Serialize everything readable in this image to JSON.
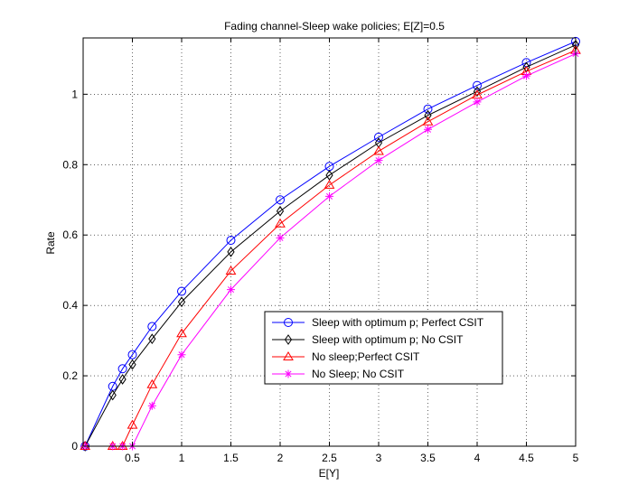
{
  "chart_data": {
    "type": "line",
    "title": "Fading channel-Sleep wake policies; E[Z]=0.5",
    "xlabel": "E[Y]",
    "ylabel": "Rate",
    "xlim": [
      0,
      5
    ],
    "ylim": [
      0,
      1.16
    ],
    "xticks": [
      0.5,
      1,
      1.5,
      2,
      2.5,
      3,
      3.5,
      4,
      4.5,
      5
    ],
    "xtick_labels": [
      "0.5",
      "1",
      "1.5",
      "2",
      "2.5",
      "3",
      "3.5",
      "4",
      "4.5",
      "5"
    ],
    "yticks": [
      0,
      0.2,
      0.4,
      0.6,
      0.8,
      1
    ],
    "ytick_labels": [
      "0",
      "0.2",
      "0.4",
      "0.6",
      "0.8",
      "1"
    ],
    "grid": true,
    "legend_position": "center-right",
    "series": [
      {
        "name": "Sleep with optimum p; Perfect CSIT",
        "color": "#0000ff",
        "marker": "circle",
        "x": [
          0.02,
          0.3,
          0.4,
          0.5,
          0.7,
          1,
          1.5,
          2,
          2.5,
          3,
          3.5,
          4,
          4.5,
          5
        ],
        "y": [
          0,
          0.17,
          0.22,
          0.26,
          0.34,
          0.44,
          0.585,
          0.7,
          0.795,
          0.878,
          0.958,
          1.025,
          1.09,
          1.15
        ]
      },
      {
        "name": "Sleep with optimum p; No CSIT",
        "color": "#000000",
        "marker": "diamond",
        "x": [
          0.02,
          0.3,
          0.4,
          0.5,
          0.7,
          1,
          1.5,
          2,
          2.5,
          3,
          3.5,
          4,
          4.5,
          5
        ],
        "y": [
          0,
          0.145,
          0.19,
          0.232,
          0.305,
          0.41,
          0.552,
          0.668,
          0.77,
          0.862,
          0.94,
          1.008,
          1.077,
          1.14
        ]
      },
      {
        "name": "No sleep;Perfect CSIT",
        "color": "#ff0000",
        "marker": "triangle",
        "x": [
          0.02,
          0.3,
          0.4,
          0.5,
          0.7,
          1,
          1.5,
          2,
          2.5,
          3,
          3.5,
          4,
          4.5,
          5
        ],
        "y": [
          0,
          0,
          0,
          0.06,
          0.175,
          0.32,
          0.498,
          0.632,
          0.742,
          0.838,
          0.922,
          0.998,
          1.065,
          1.125
        ]
      },
      {
        "name": "No Sleep; No CSIT",
        "color": "#ff00ff",
        "marker": "star",
        "x": [
          0.02,
          0.3,
          0.4,
          0.5,
          0.7,
          1,
          1.5,
          2,
          2.5,
          3,
          3.5,
          4,
          4.5,
          5
        ],
        "y": [
          0,
          0,
          0,
          0,
          0.115,
          0.26,
          0.445,
          0.592,
          0.71,
          0.812,
          0.9,
          0.978,
          1.052,
          1.115
        ]
      }
    ]
  }
}
